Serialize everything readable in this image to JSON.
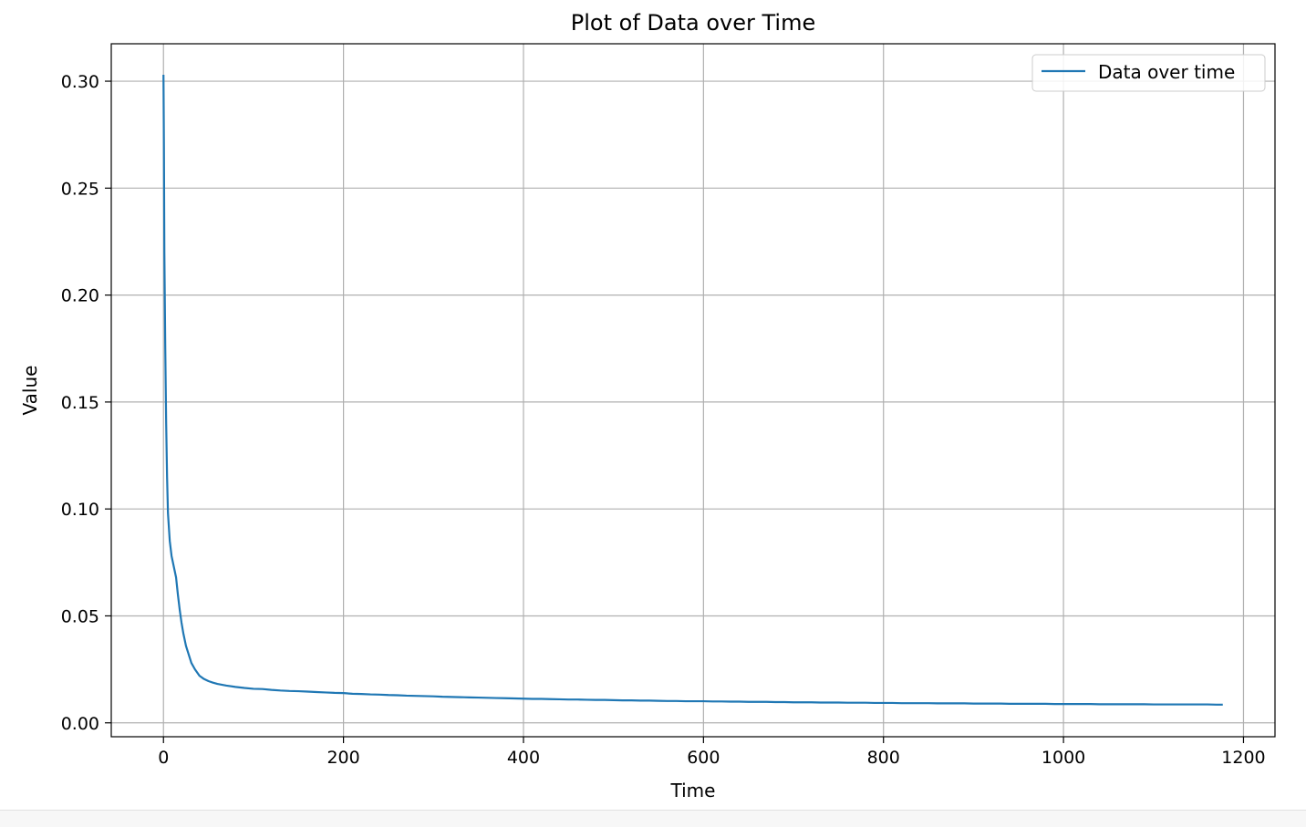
{
  "chart_data": {
    "type": "line",
    "title": "Plot of Data over Time",
    "xlabel": "Time",
    "ylabel": "Value",
    "xlim": [
      -58,
      1235
    ],
    "ylim": [
      -0.0065,
      0.3175
    ],
    "xticks": [
      0,
      200,
      400,
      600,
      800,
      1000,
      1200
    ],
    "xtick_labels": [
      "0",
      "200",
      "400",
      "600",
      "800",
      "1000",
      "1200"
    ],
    "yticks": [
      0.0,
      0.05,
      0.1,
      0.15,
      0.2,
      0.25,
      0.3
    ],
    "ytick_labels": [
      "0.00",
      "0.05",
      "0.10",
      "0.15",
      "0.20",
      "0.25",
      "0.30"
    ],
    "grid": true,
    "legend": {
      "position": "upper right"
    },
    "series": [
      {
        "name": "Data over time",
        "color": "#1f77b4",
        "x": [
          0,
          0.5,
          1,
          2,
          3,
          4,
          5,
          7,
          9,
          10,
          12,
          14,
          16,
          18,
          20,
          22,
          25,
          28,
          31,
          35,
          40,
          45,
          50,
          55,
          60,
          70,
          80,
          90,
          100,
          110,
          120,
          130,
          140,
          150,
          160,
          170,
          180,
          190,
          200,
          210,
          220,
          230,
          240,
          250,
          260,
          270,
          280,
          290,
          300,
          310,
          320,
          330,
          340,
          350,
          360,
          370,
          380,
          390,
          400,
          410,
          420,
          430,
          440,
          450,
          460,
          470,
          480,
          490,
          500,
          510,
          520,
          530,
          540,
          550,
          560,
          570,
          580,
          590,
          600,
          610,
          620,
          630,
          640,
          650,
          660,
          670,
          680,
          690,
          700,
          710,
          720,
          730,
          740,
          750,
          760,
          770,
          780,
          790,
          800,
          810,
          820,
          830,
          840,
          850,
          860,
          870,
          880,
          890,
          900,
          910,
          920,
          930,
          940,
          950,
          960,
          970,
          980,
          990,
          1000,
          1010,
          1020,
          1030,
          1040,
          1050,
          1060,
          1070,
          1080,
          1090,
          1100,
          1110,
          1120,
          1130,
          1140,
          1150,
          1160,
          1170,
          1177
        ],
        "y": [
          0.303,
          0.27,
          0.22,
          0.175,
          0.14,
          0.115,
          0.098,
          0.085,
          0.078,
          0.076,
          0.072,
          0.068,
          0.06,
          0.053,
          0.047,
          0.042,
          0.036,
          0.032,
          0.028,
          0.025,
          0.022,
          0.0205,
          0.0195,
          0.0188,
          0.0182,
          0.0174,
          0.0168,
          0.0163,
          0.0159,
          0.0158,
          0.0154,
          0.0151,
          0.0149,
          0.0148,
          0.0146,
          0.0144,
          0.0142,
          0.014,
          0.0139,
          0.0136,
          0.0135,
          0.0133,
          0.0132,
          0.013,
          0.0129,
          0.0127,
          0.0126,
          0.0125,
          0.0124,
          0.0122,
          0.0121,
          0.012,
          0.0119,
          0.0118,
          0.0117,
          0.0116,
          0.0115,
          0.0114,
          0.0113,
          0.0112,
          0.0112,
          0.0111,
          0.011,
          0.0109,
          0.0109,
          0.0108,
          0.0107,
          0.0107,
          0.0106,
          0.0105,
          0.0105,
          0.0104,
          0.0104,
          0.0103,
          0.0102,
          0.0102,
          0.0101,
          0.0101,
          0.0101,
          0.01,
          0.01,
          0.0099,
          0.0099,
          0.0098,
          0.0098,
          0.0098,
          0.0097,
          0.0097,
          0.0096,
          0.0096,
          0.0096,
          0.0095,
          0.0095,
          0.0095,
          0.0094,
          0.0094,
          0.0094,
          0.0093,
          0.0093,
          0.0093,
          0.0092,
          0.0092,
          0.0092,
          0.0092,
          0.0091,
          0.0091,
          0.0091,
          0.0091,
          0.009,
          0.009,
          0.009,
          0.009,
          0.0089,
          0.0089,
          0.0089,
          0.0089,
          0.0089,
          0.0088,
          0.0088,
          0.0088,
          0.0088,
          0.0088,
          0.0087,
          0.0087,
          0.0087,
          0.0087,
          0.0087,
          0.0087,
          0.0086,
          0.0086,
          0.0086,
          0.0086,
          0.0086,
          0.0086,
          0.0086,
          0.0085,
          0.0085
        ]
      }
    ]
  }
}
